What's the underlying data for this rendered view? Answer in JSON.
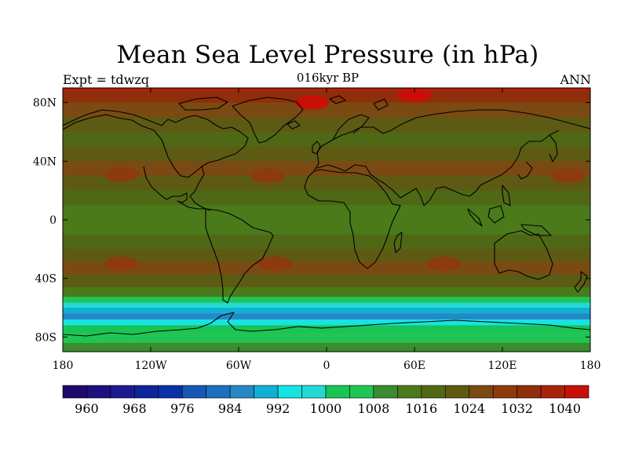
{
  "header": {
    "title": "Mean Sea Level Pressure (in hPa)",
    "subtitle": "016kyr BP",
    "left_label": "Expt = tdwzq",
    "right_label": "ANN"
  },
  "map": {
    "projection": "cylindrical-equidistant",
    "lon_range": [
      -180,
      180
    ],
    "lat_range": [
      -90,
      90
    ],
    "lon_ticks": [
      {
        "value": -180,
        "label": "180"
      },
      {
        "value": -120,
        "label": "120W"
      },
      {
        "value": -60,
        "label": "60W"
      },
      {
        "value": 0,
        "label": "0"
      },
      {
        "value": 60,
        "label": "60E"
      },
      {
        "value": 120,
        "label": "120E"
      },
      {
        "value": 180,
        "label": "180"
      }
    ],
    "lat_ticks": [
      {
        "value": 80,
        "label": "80N"
      },
      {
        "value": 40,
        "label": "40N"
      },
      {
        "value": 0,
        "label": "0"
      },
      {
        "value": -40,
        "label": "40S"
      },
      {
        "value": -80,
        "label": "80S"
      }
    ],
    "field_zonal_profile": [
      {
        "lat": 90,
        "hpa": 1036
      },
      {
        "lat": 85,
        "hpa": 1032
      },
      {
        "lat": 75,
        "hpa": 1024
      },
      {
        "lat": 65,
        "hpa": 1020
      },
      {
        "lat": 55,
        "hpa": 1016
      },
      {
        "lat": 45,
        "hpa": 1020
      },
      {
        "lat": 35,
        "hpa": 1024
      },
      {
        "lat": 25,
        "hpa": 1020
      },
      {
        "lat": 15,
        "hpa": 1016
      },
      {
        "lat": 5,
        "hpa": 1012
      },
      {
        "lat": -5,
        "hpa": 1012
      },
      {
        "lat": -15,
        "hpa": 1016
      },
      {
        "lat": -25,
        "hpa": 1020
      },
      {
        "lat": -32,
        "hpa": 1024
      },
      {
        "lat": -42,
        "hpa": 1020
      },
      {
        "lat": -50,
        "hpa": 1012
      },
      {
        "lat": -55,
        "hpa": 1004
      },
      {
        "lat": -58,
        "hpa": 996
      },
      {
        "lat": -62,
        "hpa": 988
      },
      {
        "lat": -66,
        "hpa": 984
      },
      {
        "lat": -70,
        "hpa": 992
      },
      {
        "lat": -74,
        "hpa": 1000
      },
      {
        "lat": -80,
        "hpa": 1004
      },
      {
        "lat": -88,
        "hpa": 1008
      }
    ],
    "highs": [
      {
        "lon": -140,
        "lat": 31,
        "hpa": 1028
      },
      {
        "lon": -40,
        "lat": 30,
        "hpa": 1028
      },
      {
        "lon": 165,
        "lat": 30,
        "hpa": 1028
      },
      {
        "lon": -140,
        "lat": -30,
        "hpa": 1028
      },
      {
        "lon": -35,
        "lat": -30,
        "hpa": 1028
      },
      {
        "lon": 80,
        "lat": -30,
        "hpa": 1028
      },
      {
        "lon": -10,
        "lat": 80,
        "hpa": 1040
      },
      {
        "lon": 60,
        "lat": 85,
        "hpa": 1040
      }
    ]
  },
  "colorbar": {
    "colors": [
      "#1d0a6a",
      "#1c0f7e",
      "#1b1a8e",
      "#10249c",
      "#0a30a8",
      "#1757b3",
      "#1d6ebc",
      "#2488c4",
      "#11b0d2",
      "#17e3e3",
      "#24d9d4",
      "#18c455",
      "#20c555",
      "#3b8c2e",
      "#4a7a1a",
      "#4f6815",
      "#5d5a14",
      "#7a4a12",
      "#8c3a0e",
      "#8e2e0a",
      "#a8220b",
      "#c81008"
    ],
    "labels": [
      "960",
      "968",
      "976",
      "984",
      "992",
      "1000",
      "1008",
      "1016",
      "1024",
      "1032",
      "1040"
    ],
    "levels": [
      956,
      960,
      964,
      968,
      972,
      976,
      980,
      984,
      988,
      992,
      996,
      1000,
      1004,
      1008,
      1012,
      1016,
      1020,
      1024,
      1028,
      1032,
      1036,
      1040,
      1044
    ]
  }
}
